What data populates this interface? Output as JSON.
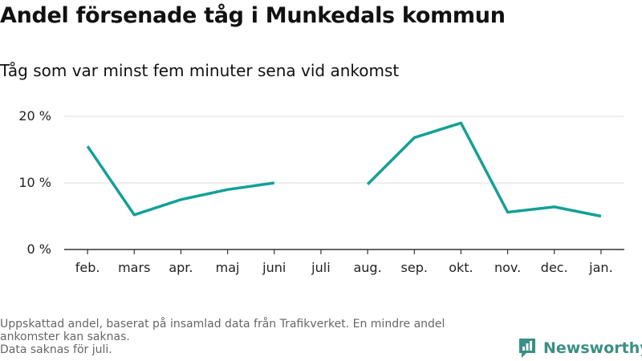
{
  "chart_data": {
    "type": "line",
    "title": "Andel försenade tåg i Munkedals kommun",
    "subtitle": "Tåg som var minst fem minuter sena vid ankomst",
    "categories": [
      "feb.",
      "mars",
      "apr.",
      "maj",
      "juni",
      "juli",
      "aug.",
      "sep.",
      "okt.",
      "nov.",
      "dec.",
      "jan."
    ],
    "values": [
      15.5,
      5.2,
      7.5,
      9.0,
      10.0,
      null,
      9.8,
      16.8,
      19.0,
      5.6,
      6.4,
      5.0
    ],
    "yticks": [
      0,
      10,
      20
    ],
    "ytick_labels": [
      "0 %",
      "10 %",
      "20 %"
    ],
    "ylim": [
      0,
      20
    ],
    "grid": true,
    "line_color": "#14a096"
  },
  "footer": {
    "note1": "Uppskattad andel, baserat på insamlad data från Trafikverket. En mindre andel ankomster kan saknas.",
    "note2": "Data saknas för juli."
  },
  "brand": {
    "name": "Newsworthy",
    "color": "#3a8f86",
    "icon": "bar-chart-speech-icon"
  }
}
